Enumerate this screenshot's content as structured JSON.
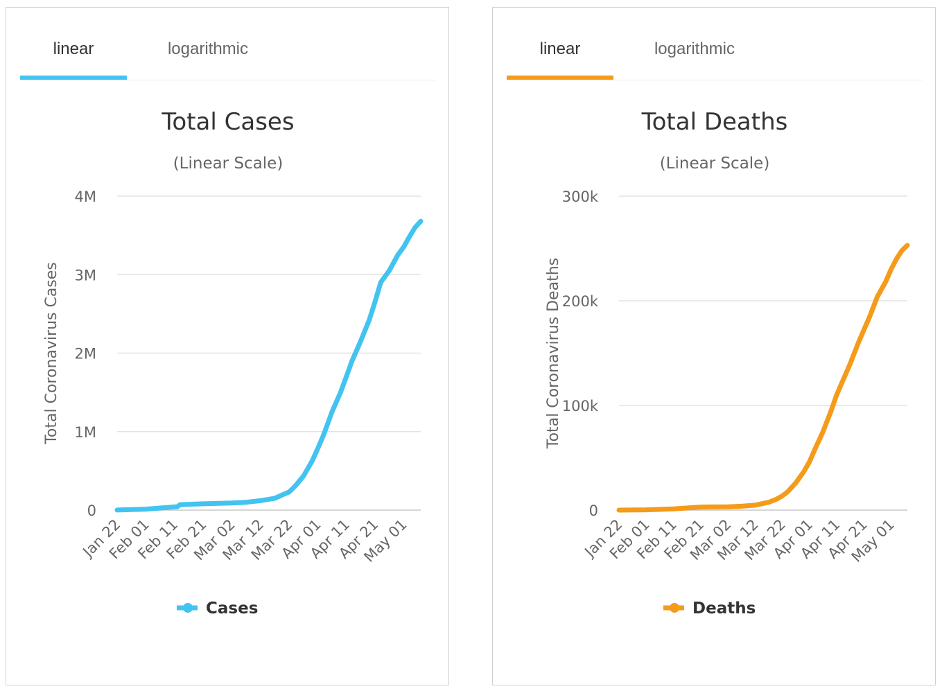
{
  "chart_data": [
    {
      "type": "line",
      "tabs": [
        "linear",
        "logarithmic"
      ],
      "active_tab": "linear",
      "title": "Total Cases",
      "subtitle": "(Linear Scale)",
      "xlabel": "",
      "ylabel": "Total Coronavirus Cases",
      "ylim": [
        0,
        4000000
      ],
      "y_ticks": [
        0,
        1000000,
        2000000,
        3000000,
        4000000
      ],
      "y_tick_labels": [
        "0",
        "1M",
        "2M",
        "3M",
        "4M"
      ],
      "x_ticks": [
        "Jan 22",
        "Feb 01",
        "Feb 11",
        "Feb 21",
        "Mar 02",
        "Mar 12",
        "Mar 22",
        "Apr 01",
        "Apr 11",
        "Apr 21",
        "May 01"
      ],
      "x_range_days": [
        0,
        106
      ],
      "color": "#43c3f0",
      "legend": "Cases",
      "series": [
        {
          "name": "Cases",
          "x": [
            0,
            10,
            21,
            22,
            30,
            40,
            45,
            50,
            55,
            58,
            60,
            62,
            65,
            68,
            70,
            72,
            75,
            78,
            80,
            82,
            85,
            88,
            90,
            92,
            95,
            98,
            100,
            102,
            104,
            106
          ],
          "values": [
            560,
            12000,
            43000,
            70000,
            80000,
            90000,
            100000,
            120000,
            150000,
            200000,
            230000,
            300000,
            430000,
            620000,
            780000,
            950000,
            1250000,
            1500000,
            1700000,
            1900000,
            2150000,
            2420000,
            2650000,
            2900000,
            3050000,
            3250000,
            3350000,
            3480000,
            3600000,
            3680000
          ]
        }
      ]
    },
    {
      "type": "line",
      "tabs": [
        "linear",
        "logarithmic"
      ],
      "active_tab": "linear",
      "title": "Total Deaths",
      "subtitle": "(Linear Scale)",
      "xlabel": "",
      "ylabel": "Total Coronavirus Deaths",
      "ylim": [
        0,
        300000
      ],
      "y_ticks": [
        0,
        100000,
        200000,
        300000
      ],
      "y_tick_labels": [
        "0",
        "100k",
        "200k",
        "300k"
      ],
      "x_ticks": [
        "Jan 22",
        "Feb 01",
        "Feb 11",
        "Feb 21",
        "Mar 02",
        "Mar 12",
        "Mar 22",
        "Apr 01",
        "Apr 11",
        "Apr 21",
        "May 01"
      ],
      "x_range_days": [
        0,
        106
      ],
      "color": "#f59b1a",
      "legend": "Deaths",
      "series": [
        {
          "name": "Deaths",
          "x": [
            0,
            10,
            20,
            30,
            40,
            45,
            50,
            55,
            58,
            60,
            62,
            65,
            68,
            70,
            72,
            75,
            78,
            80,
            82,
            85,
            88,
            90,
            92,
            95,
            98,
            100,
            102,
            104,
            106
          ],
          "values": [
            17,
            260,
            1100,
            2900,
            3200,
            3700,
            4700,
            7500,
            10500,
            13500,
            17500,
            26000,
            37000,
            46000,
            58000,
            75000,
            95000,
            110000,
            122000,
            140000,
            160000,
            172000,
            184000,
            204000,
            218000,
            230000,
            240000,
            248000,
            253000
          ]
        }
      ]
    }
  ]
}
